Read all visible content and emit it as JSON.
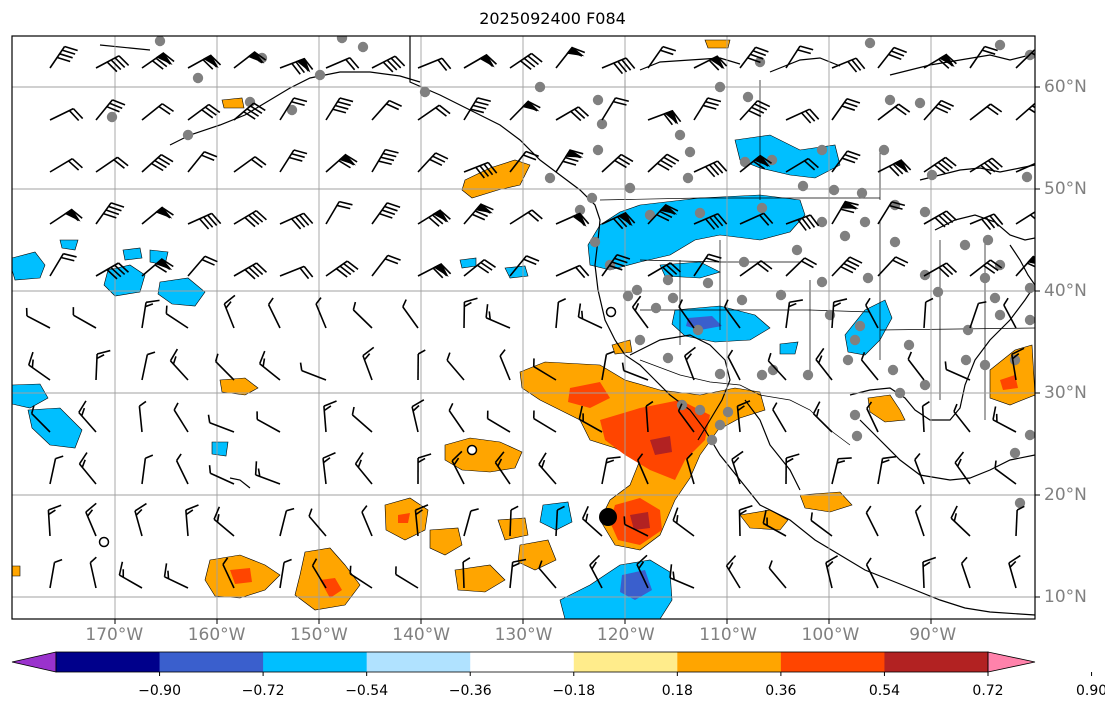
{
  "title": "2025092400 F084",
  "map": {
    "lon_labels": [
      {
        "text": "170°W",
        "lon": -170
      },
      {
        "text": "160°W",
        "lon": -160
      },
      {
        "text": "150°W",
        "lon": -150
      },
      {
        "text": "140°W",
        "lon": -140
      },
      {
        "text": "130°W",
        "lon": -130
      },
      {
        "text": "120°W",
        "lon": -120
      },
      {
        "text": "110°W",
        "lon": -110
      },
      {
        "text": "100°W",
        "lon": -100
      },
      {
        "text": "90°W",
        "lon": -90
      }
    ],
    "lat_labels": [
      {
        "text": "60°N",
        "lat": 60
      },
      {
        "text": "50°N",
        "lat": 50
      },
      {
        "text": "40°N",
        "lat": 40
      },
      {
        "text": "30°N",
        "lat": 30
      },
      {
        "text": "20°N",
        "lat": 20
      },
      {
        "text": "10°N",
        "lat": 10
      }
    ],
    "extent": {
      "lon_min": -180,
      "lon_max": -80,
      "lat_min": 7,
      "lat_max": 65
    },
    "grid": true,
    "colors": {
      "grid": "#a0a0a0",
      "coast": "#000000",
      "station": "#808080"
    }
  },
  "colorbar": {
    "ticks": [
      "−0.90",
      "−0.72",
      "−0.54",
      "−0.36",
      "−0.18",
      "0.18",
      "0.36",
      "0.54",
      "0.72",
      "0.90"
    ],
    "colors": [
      "#9a32cd",
      "#00008b",
      "#3a5fcd",
      "#00bfff",
      "#b0e2ff",
      "#ffffff",
      "#ffec8b",
      "#ffa500",
      "#ff4500",
      "#b22222",
      "#ff82ab"
    ]
  }
}
